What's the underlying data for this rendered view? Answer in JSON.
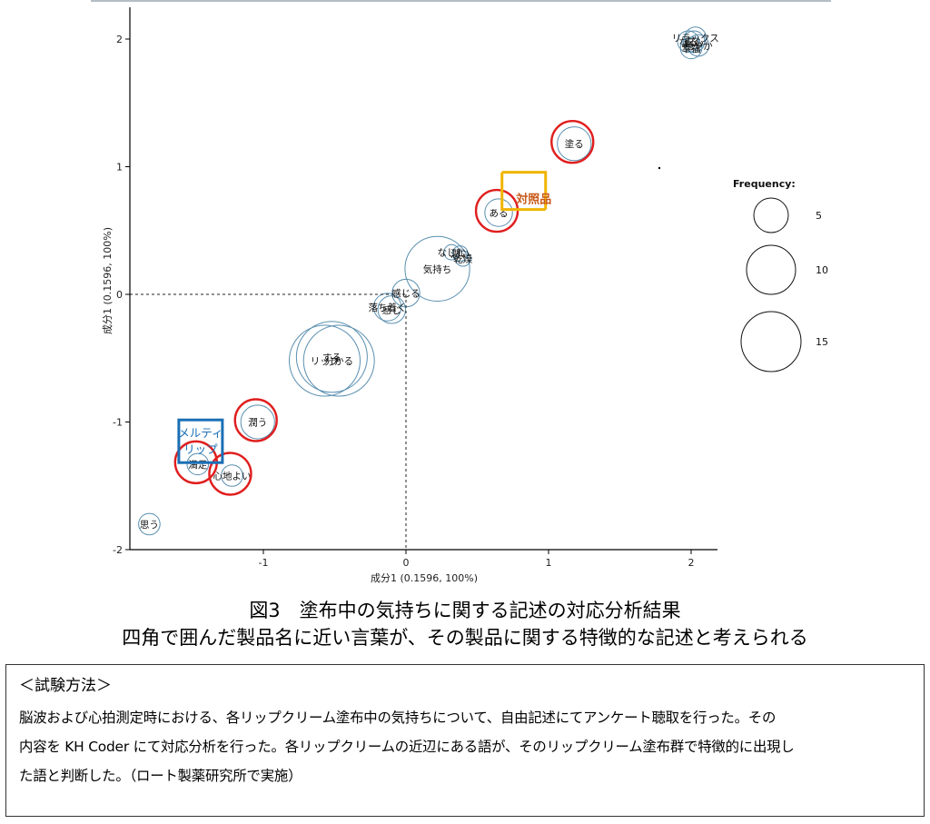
{
  "chart_data": {
    "type": "scatter",
    "xlabel": "成分1 (0.1596, 100%)",
    "ylabel": "成分1 (0.1596, 100%)",
    "xlim": [
      -1.95,
      2.2
    ],
    "ylim": [
      -2.05,
      2.25
    ],
    "x_ticks": [
      -1,
      0,
      1,
      2
    ],
    "y_ticks": [
      -2,
      -1,
      0,
      1,
      2
    ],
    "x_tick_labels": [
      "-1",
      "0",
      "1",
      "2"
    ],
    "y_tick_labels": [
      "-2",
      "-1",
      "0",
      "1",
      "2"
    ],
    "reference_lines": {
      "x": 0,
      "y": 0,
      "style": "dashed"
    },
    "words": [
      {
        "label": "リラックス",
        "x": 2.03,
        "y": 2.01,
        "frequency": 2
      },
      {
        "label": "なる",
        "x": 1.98,
        "y": 1.98,
        "frequency": 2
      },
      {
        "label": "安心",
        "x": 2.02,
        "y": 1.98,
        "frequency": 2
      },
      {
        "label": "穏やか",
        "x": 2.05,
        "y": 1.95,
        "frequency": 2
      },
      {
        "label": "幸福",
        "x": 2.0,
        "y": 1.93,
        "frequency": 2
      },
      {
        "label": "塗る",
        "x": 1.18,
        "y": 1.18,
        "frequency": 4
      },
      {
        "label": "ある",
        "x": 0.65,
        "y": 0.64,
        "frequency": 3
      },
      {
        "label": "なじむ",
        "x": 0.32,
        "y": 0.33,
        "frequency": 1
      },
      {
        "label": "潤い",
        "x": 0.38,
        "y": 0.32,
        "frequency": 1
      },
      {
        "label": "乾燥",
        "x": 0.4,
        "y": 0.28,
        "frequency": 1
      },
      {
        "label": "気持ち",
        "x": 0.22,
        "y": 0.2,
        "frequency": 9
      },
      {
        "label": "感じる",
        "x": 0.0,
        "y": 0.01,
        "frequency": 3
      },
      {
        "label": "落ち着く",
        "x": -0.13,
        "y": -0.1,
        "frequency": 3
      },
      {
        "label": "感じ",
        "x": -0.1,
        "y": -0.12,
        "frequency": 3
      },
      {
        "label": "する",
        "x": -0.52,
        "y": -0.49,
        "frequency": 10
      },
      {
        "label": "リップ",
        "x": -0.57,
        "y": -0.52,
        "frequency": 10
      },
      {
        "label": "分かる",
        "x": -0.47,
        "y": -0.52,
        "frequency": 10
      },
      {
        "label": "潤う",
        "x": -1.04,
        "y": -1.0,
        "frequency": 4
      },
      {
        "label": "満足",
        "x": -1.46,
        "y": -1.33,
        "frequency": 2
      },
      {
        "label": "心地よい",
        "x": -1.22,
        "y": -1.42,
        "frequency": 2
      },
      {
        "label": "思う",
        "x": -1.8,
        "y": -1.8,
        "frequency": 2
      }
    ],
    "products": [
      {
        "label": "対照品",
        "x": 0.82,
        "y": 0.75,
        "color": "#f0b400",
        "text_color": "#c85a1a"
      },
      {
        "label": "メルティ\nリップ",
        "x": -1.23,
        "y": -1.24,
        "color": "#1a6fb5",
        "text_color": "#1a6fb5"
      }
    ],
    "highlights": [
      {
        "label": "塗る",
        "color": "#e01e1e"
      },
      {
        "label": "ある",
        "color": "#e01e1e"
      },
      {
        "label": "潤う",
        "color": "#e01e1e"
      },
      {
        "label": "満足",
        "color": "#e01e1e"
      },
      {
        "label": "心地よい",
        "color": "#e01e1e"
      }
    ],
    "legend": {
      "title": "Frequency:",
      "position": "right",
      "sizes": [
        5,
        10,
        15
      ],
      "size_labels": [
        "5",
        "10",
        "15"
      ]
    },
    "colors": {
      "bubble": "#5a8fb0",
      "axis": "#000000",
      "highlight": "#e01e1e"
    }
  },
  "caption": {
    "line1": "図3　塗布中の気持ちに関する記述の対応分析結果",
    "line2": "四角で囲んだ製品名に近い言葉が、その製品に関する特徴的な記述と考えられる"
  },
  "method": {
    "title": "＜試験方法＞",
    "lines": [
      "脳波および心拍測定時における、各リップクリーム塗布中の気持ちについて、自由記述にてアンケート聴取を行った。その",
      "内容を KH Coder にて対応分析を行った。各リップクリームの近辺にある語が、そのリップクリーム塗布群で特徴的に出現し",
      "た語と判断した。（ロート製薬研究所で実施）"
    ]
  }
}
